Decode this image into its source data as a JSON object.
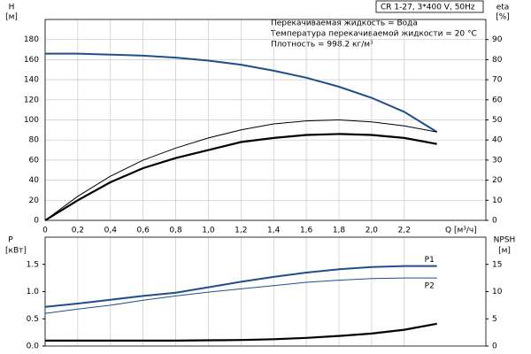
{
  "chart_data": [
    {
      "type": "line",
      "x_label": "Q [м³/ч]",
      "y_label": "H",
      "y_unit": "[м]",
      "y2_label": "eta",
      "y2_unit": "[%]",
      "info_box": "CR 1-27, 3*400 V, 50Hz",
      "annotations": [
        "Перекачиваемая жидкость = Вода",
        "Температура перекачиваемой жидкости = 20 °C",
        "Плотность = 998.2 кг/м³"
      ],
      "x": [
        0,
        0.2,
        0.4,
        0.6,
        0.8,
        1.0,
        1.2,
        1.4,
        1.6,
        1.8,
        2.0,
        2.2,
        2.4
      ],
      "xlim": [
        0,
        2.7
      ],
      "xticks": [
        0,
        {
          "value": 0.2,
          "label": "0,2"
        },
        {
          "value": 0.4,
          "label": "0,4"
        },
        {
          "value": 0.6,
          "label": "0,6"
        },
        {
          "value": 0.8,
          "label": "0,8"
        },
        {
          "value": 1.0,
          "label": "1,0"
        },
        {
          "value": 1.2,
          "label": "1,2"
        },
        {
          "value": 1.4,
          "label": "1,4"
        },
        {
          "value": 1.6,
          "label": "1,6"
        },
        {
          "value": 1.8,
          "label": "1,8"
        },
        {
          "value": 2.0,
          "label": "2,0"
        },
        {
          "value": 2.2,
          "label": "2,2"
        }
      ],
      "ylim": [
        0,
        200
      ],
      "yticks": [
        0,
        20,
        40,
        60,
        80,
        100,
        120,
        140,
        160,
        180
      ],
      "y2lim": [
        0,
        100
      ],
      "y2ticks": [
        0,
        10,
        20,
        30,
        40,
        50,
        60,
        70,
        80,
        90
      ],
      "grid": true,
      "series": [
        {
          "color": "#1f4e8c",
          "width": 2,
          "values": [
            166,
            166,
            165,
            164,
            162,
            159,
            155,
            149,
            142,
            133,
            122,
            108,
            88
          ]
        },
        {
          "color": "#000000",
          "width": 1,
          "axis": "y2",
          "values": [
            0,
            12,
            22,
            30,
            36,
            41,
            45,
            48,
            49.5,
            50,
            49,
            47,
            44
          ]
        },
        {
          "color": "#000000",
          "width": 2.2,
          "axis": "y2",
          "values": [
            0,
            10,
            19,
            26,
            31,
            35,
            39,
            41,
            42.5,
            43,
            42.5,
            41,
            38
          ]
        }
      ]
    },
    {
      "type": "line",
      "y_label": "P",
      "y_unit": "[кВт]",
      "y2_label": "NPSH",
      "y2_unit": "[м]",
      "x": [
        0,
        0.2,
        0.4,
        0.6,
        0.8,
        1.0,
        1.2,
        1.4,
        1.6,
        1.8,
        2.0,
        2.2,
        2.4
      ],
      "xlim": [
        0,
        2.7
      ],
      "ylim": [
        0,
        2
      ],
      "yticks": [
        {
          "value": 0,
          "label": "0.0"
        },
        0.5,
        {
          "value": 1,
          "label": "1.0"
        },
        1.5
      ],
      "y2lim": [
        0,
        20
      ],
      "y2ticks": [
        0,
        5,
        10,
        15
      ],
      "series": [
        {
          "name": "P1",
          "color": "#1f4e8c",
          "width": 2,
          "values": [
            0.72,
            0.78,
            0.85,
            0.92,
            0.98,
            1.08,
            1.18,
            1.27,
            1.35,
            1.41,
            1.45,
            1.47,
            1.47
          ]
        },
        {
          "name": "P2",
          "color": "#1f4e8c",
          "width": 1,
          "values": [
            0.6,
            0.68,
            0.75,
            0.84,
            0.92,
            0.99,
            1.05,
            1.11,
            1.17,
            1.21,
            1.24,
            1.25,
            1.25
          ]
        },
        {
          "color": "#000000",
          "width": 2.2,
          "axis": "y2",
          "values": [
            1.0,
            1.0,
            1.0,
            1.0,
            1.0,
            1.05,
            1.1,
            1.25,
            1.5,
            1.85,
            2.3,
            3.0,
            4.1
          ]
        }
      ]
    }
  ]
}
